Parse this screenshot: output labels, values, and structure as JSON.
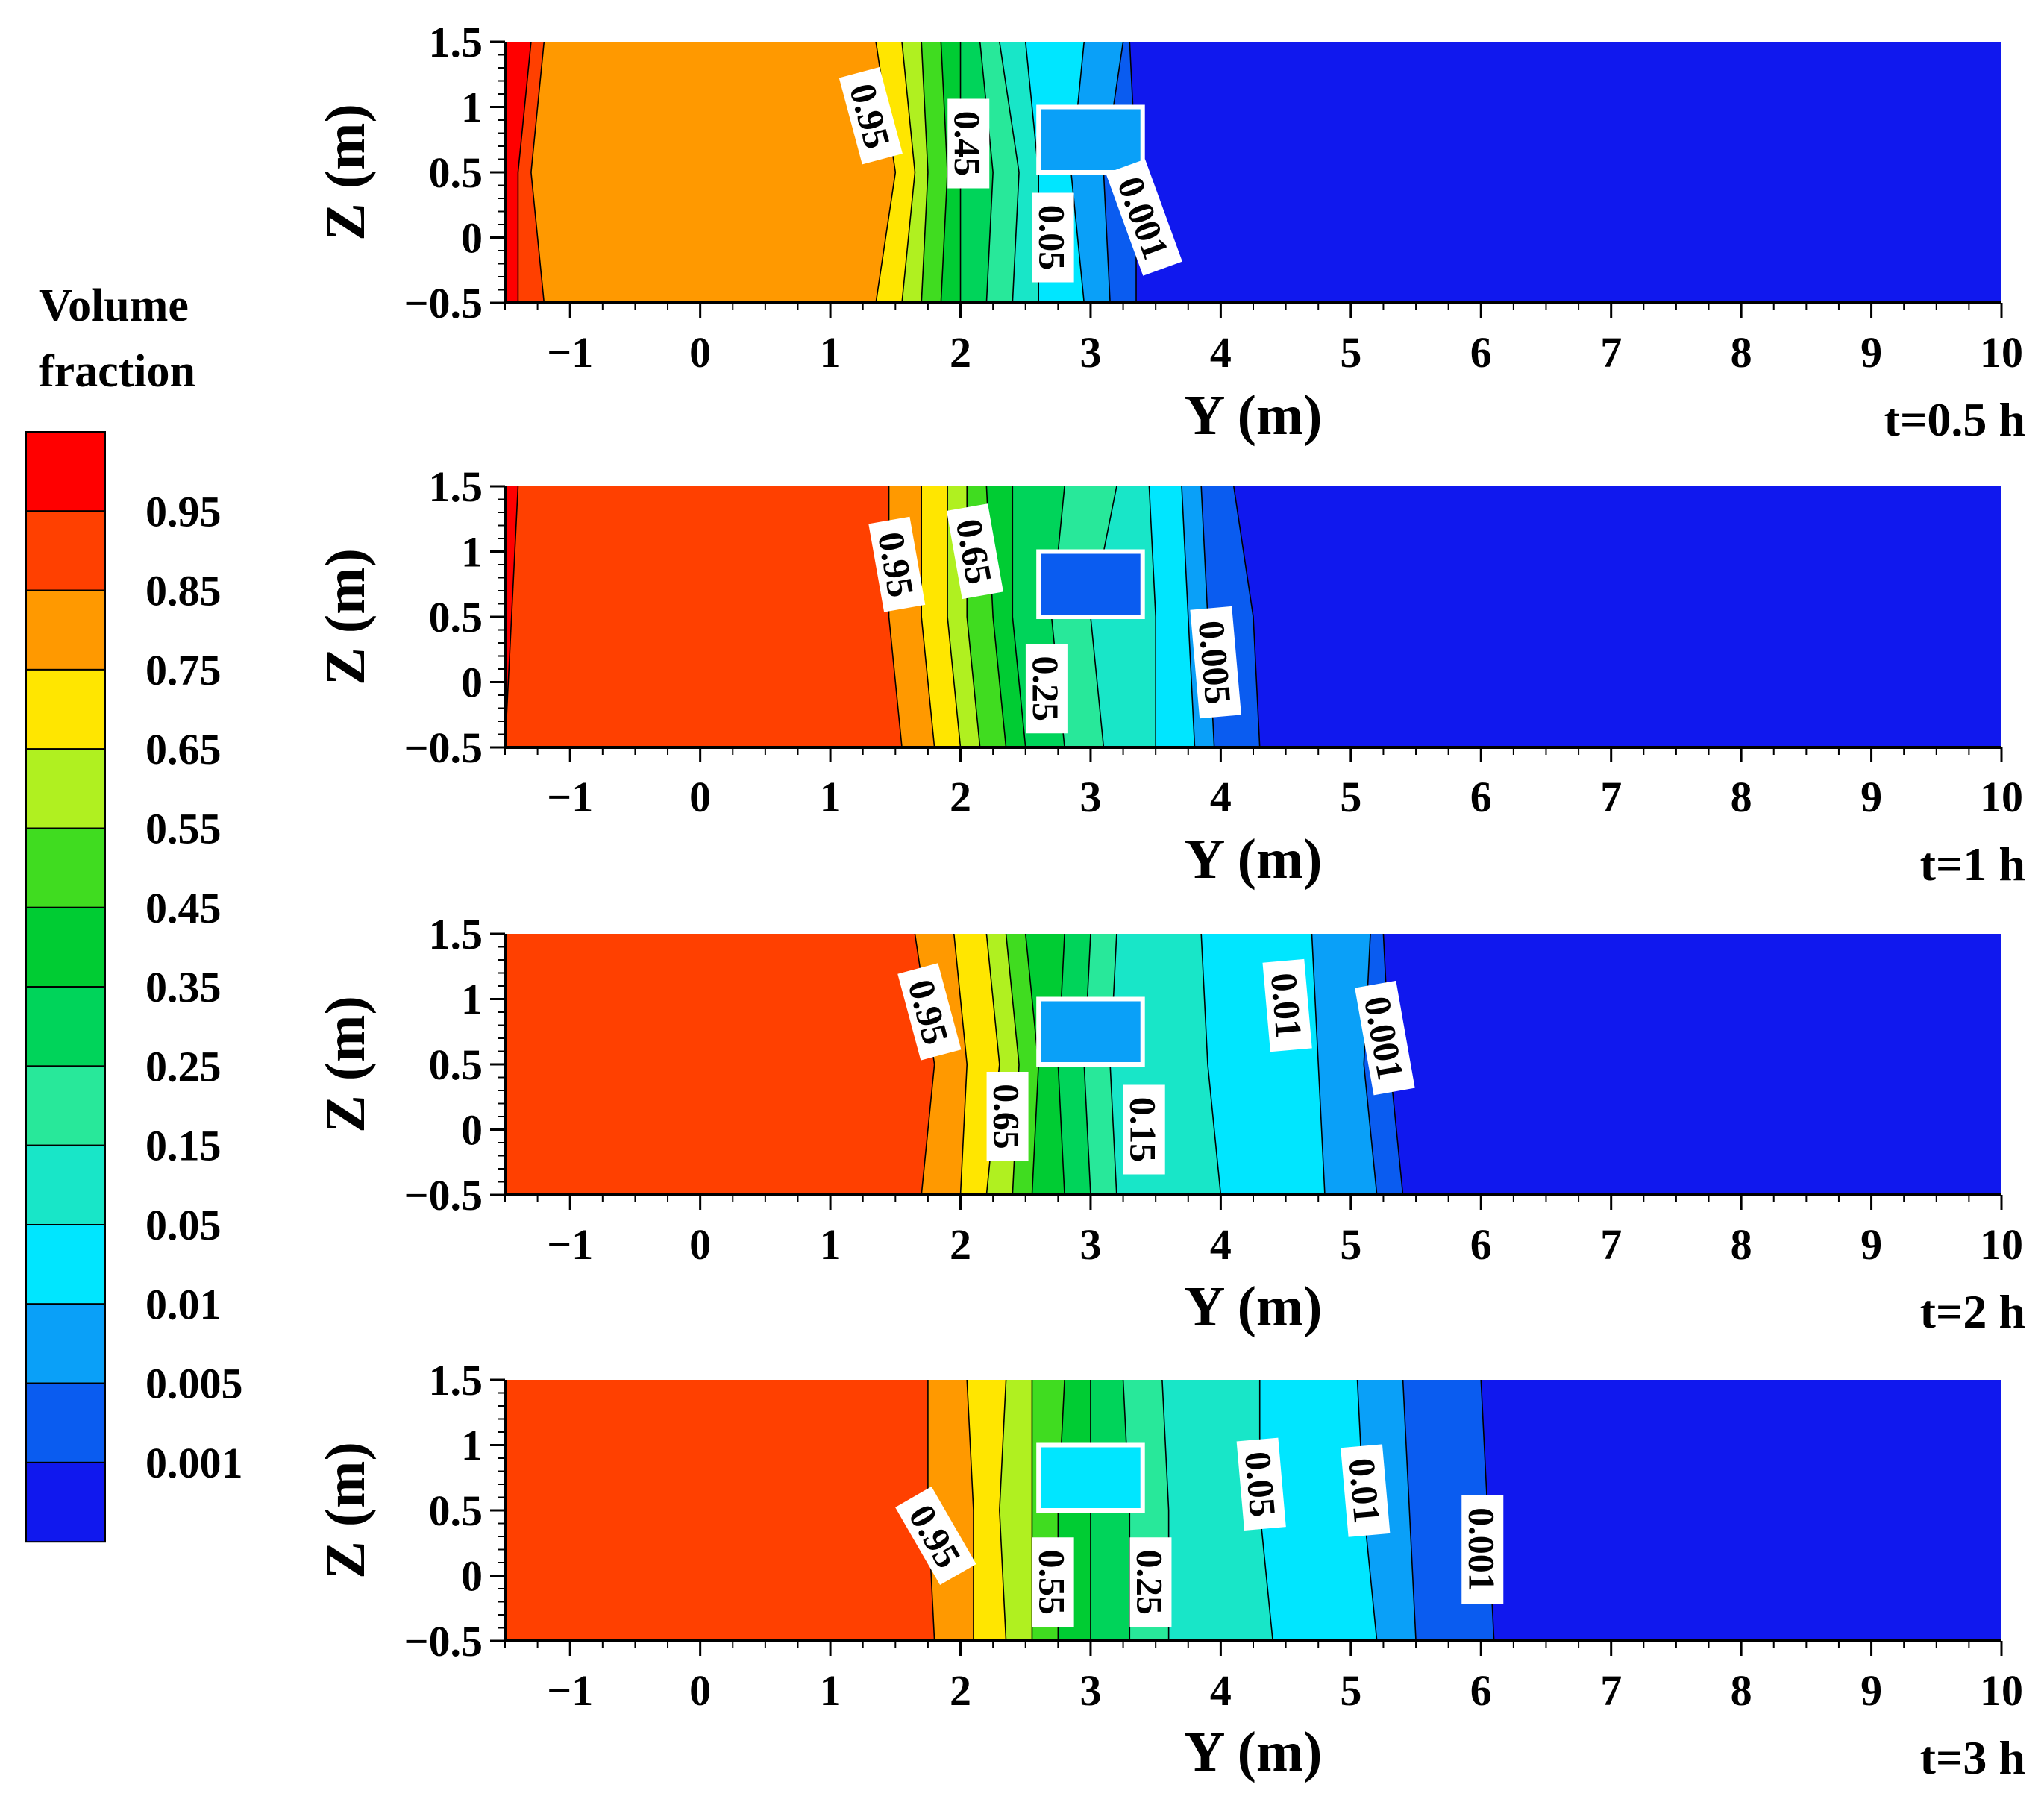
{
  "chart_data": {
    "type": "contour",
    "quantity": "Volume fraction",
    "legend": {
      "title_line1": "Volume",
      "title_line2": "fraction",
      "levels": [
        "0.95",
        "0.85",
        "0.75",
        "0.65",
        "0.55",
        "0.45",
        "0.35",
        "0.25",
        "0.15",
        "0.05",
        "0.01",
        "0.005",
        "0.001"
      ],
      "colors": [
        "#ff0000",
        "#ff4000",
        "#ff9900",
        "#ffe600",
        "#b0f020",
        "#40dc20",
        "#00cc33",
        "#00d45a",
        "#28e89a",
        "#18e6c8",
        "#00e6ff",
        "#0aa0f8",
        "#0a5cf0",
        "#1018ee"
      ]
    },
    "xlabel": "Y (m)",
    "ylabel": "Z (m)",
    "xlim": [
      -1.5,
      10
    ],
    "ylim": [
      -0.5,
      1.5
    ],
    "xticks": [
      "−1",
      "0",
      "1",
      "2",
      "3",
      "4",
      "5",
      "6",
      "7",
      "8",
      "9",
      "10"
    ],
    "xtick_values": [
      -1,
      0,
      1,
      2,
      3,
      4,
      5,
      6,
      7,
      8,
      9,
      10
    ],
    "yticks": [
      "1.5",
      "1",
      "0.5",
      "0",
      "−0.5"
    ],
    "ytick_values": [
      1.5,
      1,
      0.5,
      0,
      -0.5
    ],
    "obstacle": {
      "y0": 2.6,
      "y1": 3.4,
      "z0": 0.5,
      "z1": 1.0
    },
    "panels": [
      {
        "time": "t=0.5 h",
        "box_level": 11,
        "bands": [
          {
            "level": 0,
            "z": [
              -0.5,
              0.5,
              1.5
            ],
            "y": [
              -1.4,
              -1.4,
              -1.3
            ]
          },
          {
            "level": 1,
            "z": [
              -0.5,
              0.5,
              1.5
            ],
            "y": [
              -1.2,
              -1.3,
              -1.2
            ]
          },
          {
            "level": 2,
            "z": [
              -0.5,
              0.5,
              1.5
            ],
            "y": [
              1.35,
              1.5,
              1.35
            ]
          },
          {
            "level": 3,
            "z": [
              -0.5,
              0.5,
              1.5
            ],
            "y": [
              1.55,
              1.65,
              1.55
            ]
          },
          {
            "level": 4,
            "z": [
              -0.5,
              0.5,
              1.5
            ],
            "y": [
              1.7,
              1.75,
              1.7
            ]
          },
          {
            "level": 5,
            "z": [
              -0.5,
              0.5,
              1.5
            ],
            "y": [
              1.85,
              1.9,
              1.85
            ]
          },
          {
            "level": 6,
            "z": [
              -0.5,
              0.5,
              1.5
            ],
            "y": [
              2.0,
              2.0,
              2.0
            ]
          },
          {
            "level": 7,
            "z": [
              -0.5,
              0.5,
              1.5
            ],
            "y": [
              2.2,
              2.25,
              2.15
            ]
          },
          {
            "level": 8,
            "z": [
              -0.5,
              0.5,
              1.5
            ],
            "y": [
              2.4,
              2.45,
              2.3
            ]
          },
          {
            "level": 9,
            "z": [
              -0.5,
              0.5,
              1.5
            ],
            "y": [
              2.6,
              2.6,
              2.5
            ]
          },
          {
            "level": 10,
            "z": [
              -0.5,
              0.5,
              1.5
            ],
            "y": [
              2.95,
              2.85,
              2.95
            ]
          },
          {
            "level": 11,
            "z": [
              -0.5,
              0.5,
              1.5
            ],
            "y": [
              3.15,
              3.1,
              3.25
            ]
          },
          {
            "level": 12,
            "z": [
              -0.5,
              0.5,
              1.5
            ],
            "y": [
              3.35,
              3.35,
              3.3
            ]
          }
        ],
        "labels": [
          {
            "text": "0.95",
            "y": 1.3,
            "z": 0.93,
            "rot": 75
          },
          {
            "text": "0.45",
            "y": 2.05,
            "z": 0.72,
            "rot": 90
          },
          {
            "text": "0.05",
            "y": 2.7,
            "z": 0.0,
            "rot": 90
          },
          {
            "text": "0.001",
            "y": 3.4,
            "z": 0.15,
            "rot": 70
          }
        ]
      },
      {
        "time": "t=1 h",
        "box_level": 12,
        "bands": [
          {
            "level": 0,
            "z": [
              -0.5,
              0.5,
              1.5
            ],
            "y": [
              -1.5,
              -1.45,
              -1.4
            ]
          },
          {
            "level": 1,
            "z": [
              -0.5,
              0.5,
              1.5
            ],
            "y": [
              1.55,
              1.45,
              1.45
            ]
          },
          {
            "level": 2,
            "z": [
              -0.5,
              0.5,
              1.5
            ],
            "y": [
              1.8,
              1.7,
              1.7
            ]
          },
          {
            "level": 3,
            "z": [
              -0.5,
              0.5,
              1.5
            ],
            "y": [
              2.0,
              1.9,
              1.9
            ]
          },
          {
            "level": 4,
            "z": [
              -0.5,
              0.5,
              1.5
            ],
            "y": [
              2.15,
              2.05,
              2.05
            ]
          },
          {
            "level": 5,
            "z": [
              -0.5,
              0.5,
              1.5
            ],
            "y": [
              2.35,
              2.25,
              2.2
            ]
          },
          {
            "level": 6,
            "z": [
              -0.5,
              0.5,
              1.5
            ],
            "y": [
              2.5,
              2.4,
              2.4
            ]
          },
          {
            "level": 7,
            "z": [
              -0.5,
              0.5,
              1.5
            ],
            "y": [
              2.8,
              2.7,
              2.8
            ]
          },
          {
            "level": 8,
            "z": [
              -0.5,
              0.5,
              1.5
            ],
            "y": [
              3.1,
              3.0,
              3.2
            ]
          },
          {
            "level": 9,
            "z": [
              -0.5,
              0.5,
              1.5
            ],
            "y": [
              3.5,
              3.5,
              3.45
            ]
          },
          {
            "level": 10,
            "z": [
              -0.5,
              0.5,
              1.5
            ],
            "y": [
              3.8,
              3.75,
              3.7
            ]
          },
          {
            "level": 11,
            "z": [
              -0.5,
              0.5,
              1.5
            ],
            "y": [
              3.95,
              3.9,
              3.85
            ]
          },
          {
            "level": 12,
            "z": [
              -0.5,
              0.5,
              1.5
            ],
            "y": [
              4.3,
              4.25,
              4.1
            ]
          }
        ],
        "labels": [
          {
            "text": "0.95",
            "y": 1.5,
            "z": 0.9,
            "rot": 80
          },
          {
            "text": "0.65",
            "y": 2.1,
            "z": 1.0,
            "rot": 80
          },
          {
            "text": "0.25",
            "y": 2.65,
            "z": -0.05,
            "rot": 90
          },
          {
            "text": "0.005",
            "y": 3.95,
            "z": 0.15,
            "rot": 85
          }
        ]
      },
      {
        "time": "t=2 h",
        "box_level": 11,
        "bands": [
          {
            "level": 1,
            "z": [
              -0.5,
              0.5,
              1.5
            ],
            "y": [
              1.7,
              1.8,
              1.65
            ]
          },
          {
            "level": 2,
            "z": [
              -0.5,
              0.5,
              1.5
            ],
            "y": [
              2.0,
              2.05,
              1.95
            ]
          },
          {
            "level": 3,
            "z": [
              -0.5,
              0.5,
              1.5
            ],
            "y": [
              2.2,
              2.3,
              2.2
            ]
          },
          {
            "level": 4,
            "z": [
              -0.5,
              0.5,
              1.5
            ],
            "y": [
              2.4,
              2.45,
              2.35
            ]
          },
          {
            "level": 5,
            "z": [
              -0.5,
              0.5,
              1.5
            ],
            "y": [
              2.55,
              2.6,
              2.5
            ]
          },
          {
            "level": 6,
            "z": [
              -0.5,
              0.5,
              1.5
            ],
            "y": [
              2.8,
              2.75,
              2.8
            ]
          },
          {
            "level": 7,
            "z": [
              -0.5,
              0.5,
              1.5
            ],
            "y": [
              3.0,
              2.95,
              3.0
            ]
          },
          {
            "level": 8,
            "z": [
              -0.5,
              0.5,
              1.5
            ],
            "y": [
              3.2,
              3.15,
              3.2
            ]
          },
          {
            "level": 9,
            "z": [
              -0.5,
              0.5,
              1.5
            ],
            "y": [
              4.0,
              3.9,
              3.85
            ]
          },
          {
            "level": 10,
            "z": [
              -0.5,
              0.5,
              1.5
            ],
            "y": [
              4.8,
              4.75,
              4.7
            ]
          },
          {
            "level": 11,
            "z": [
              -0.5,
              0.5,
              1.5
            ],
            "y": [
              5.2,
              5.1,
              5.15
            ]
          },
          {
            "level": 12,
            "z": [
              -0.5,
              0.5,
              1.5
            ],
            "y": [
              5.4,
              5.3,
              5.25
            ]
          }
        ],
        "labels": [
          {
            "text": "0.95",
            "y": 1.75,
            "z": 0.9,
            "rot": 75
          },
          {
            "text": "0.65",
            "y": 2.35,
            "z": 0.1,
            "rot": 90
          },
          {
            "text": "0.15",
            "y": 3.4,
            "z": 0.0,
            "rot": 90
          },
          {
            "text": "0.01",
            "y": 4.5,
            "z": 0.95,
            "rot": 85
          },
          {
            "text": "0.001",
            "y": 5.25,
            "z": 0.7,
            "rot": 80
          }
        ]
      },
      {
        "time": "t=3 h",
        "box_level": 10,
        "bands": [
          {
            "level": 1,
            "z": [
              -0.5,
              0.5,
              1.5
            ],
            "y": [
              1.8,
              1.75,
              1.75
            ]
          },
          {
            "level": 2,
            "z": [
              -0.5,
              0.5,
              1.5
            ],
            "y": [
              2.1,
              2.1,
              2.05
            ]
          },
          {
            "level": 3,
            "z": [
              -0.5,
              0.5,
              1.5
            ],
            "y": [
              2.35,
              2.3,
              2.35
            ]
          },
          {
            "level": 4,
            "z": [
              -0.5,
              0.5,
              1.5
            ],
            "y": [
              2.55,
              2.55,
              2.55
            ]
          },
          {
            "level": 5,
            "z": [
              -0.5,
              0.5,
              1.5
            ],
            "y": [
              2.75,
              2.75,
              2.8
            ]
          },
          {
            "level": 6,
            "z": [
              -0.5,
              0.5,
              1.5
            ],
            "y": [
              3.0,
              3.0,
              3.0
            ]
          },
          {
            "level": 7,
            "z": [
              -0.5,
              0.5,
              1.5
            ],
            "y": [
              3.3,
              3.3,
              3.25
            ]
          },
          {
            "level": 8,
            "z": [
              -0.5,
              0.5,
              1.5
            ],
            "y": [
              3.6,
              3.6,
              3.55
            ]
          },
          {
            "level": 9,
            "z": [
              -0.5,
              0.5,
              1.5
            ],
            "y": [
              4.4,
              4.3,
              4.3
            ]
          },
          {
            "level": 10,
            "z": [
              -0.5,
              0.5,
              1.5
            ],
            "y": [
              5.2,
              5.1,
              5.05
            ]
          },
          {
            "level": 11,
            "z": [
              -0.5,
              0.5,
              1.5
            ],
            "y": [
              5.5,
              5.45,
              5.4
            ]
          },
          {
            "level": 12,
            "z": [
              -0.5,
              0.5,
              1.5
            ],
            "y": [
              6.1,
              6.05,
              6.0
            ]
          }
        ],
        "labels": [
          {
            "text": "0.95",
            "y": 1.8,
            "z": 0.3,
            "rot": 60
          },
          {
            "text": "0.55",
            "y": 2.7,
            "z": -0.05,
            "rot": 90
          },
          {
            "text": "0.25",
            "y": 3.45,
            "z": -0.05,
            "rot": 90
          },
          {
            "text": "0.05",
            "y": 4.3,
            "z": 0.7,
            "rot": 85
          },
          {
            "text": "0.01",
            "y": 5.1,
            "z": 0.65,
            "rot": 85
          },
          {
            "text": "0.001",
            "y": 6.0,
            "z": 0.2,
            "rot": 90
          }
        ]
      }
    ]
  }
}
